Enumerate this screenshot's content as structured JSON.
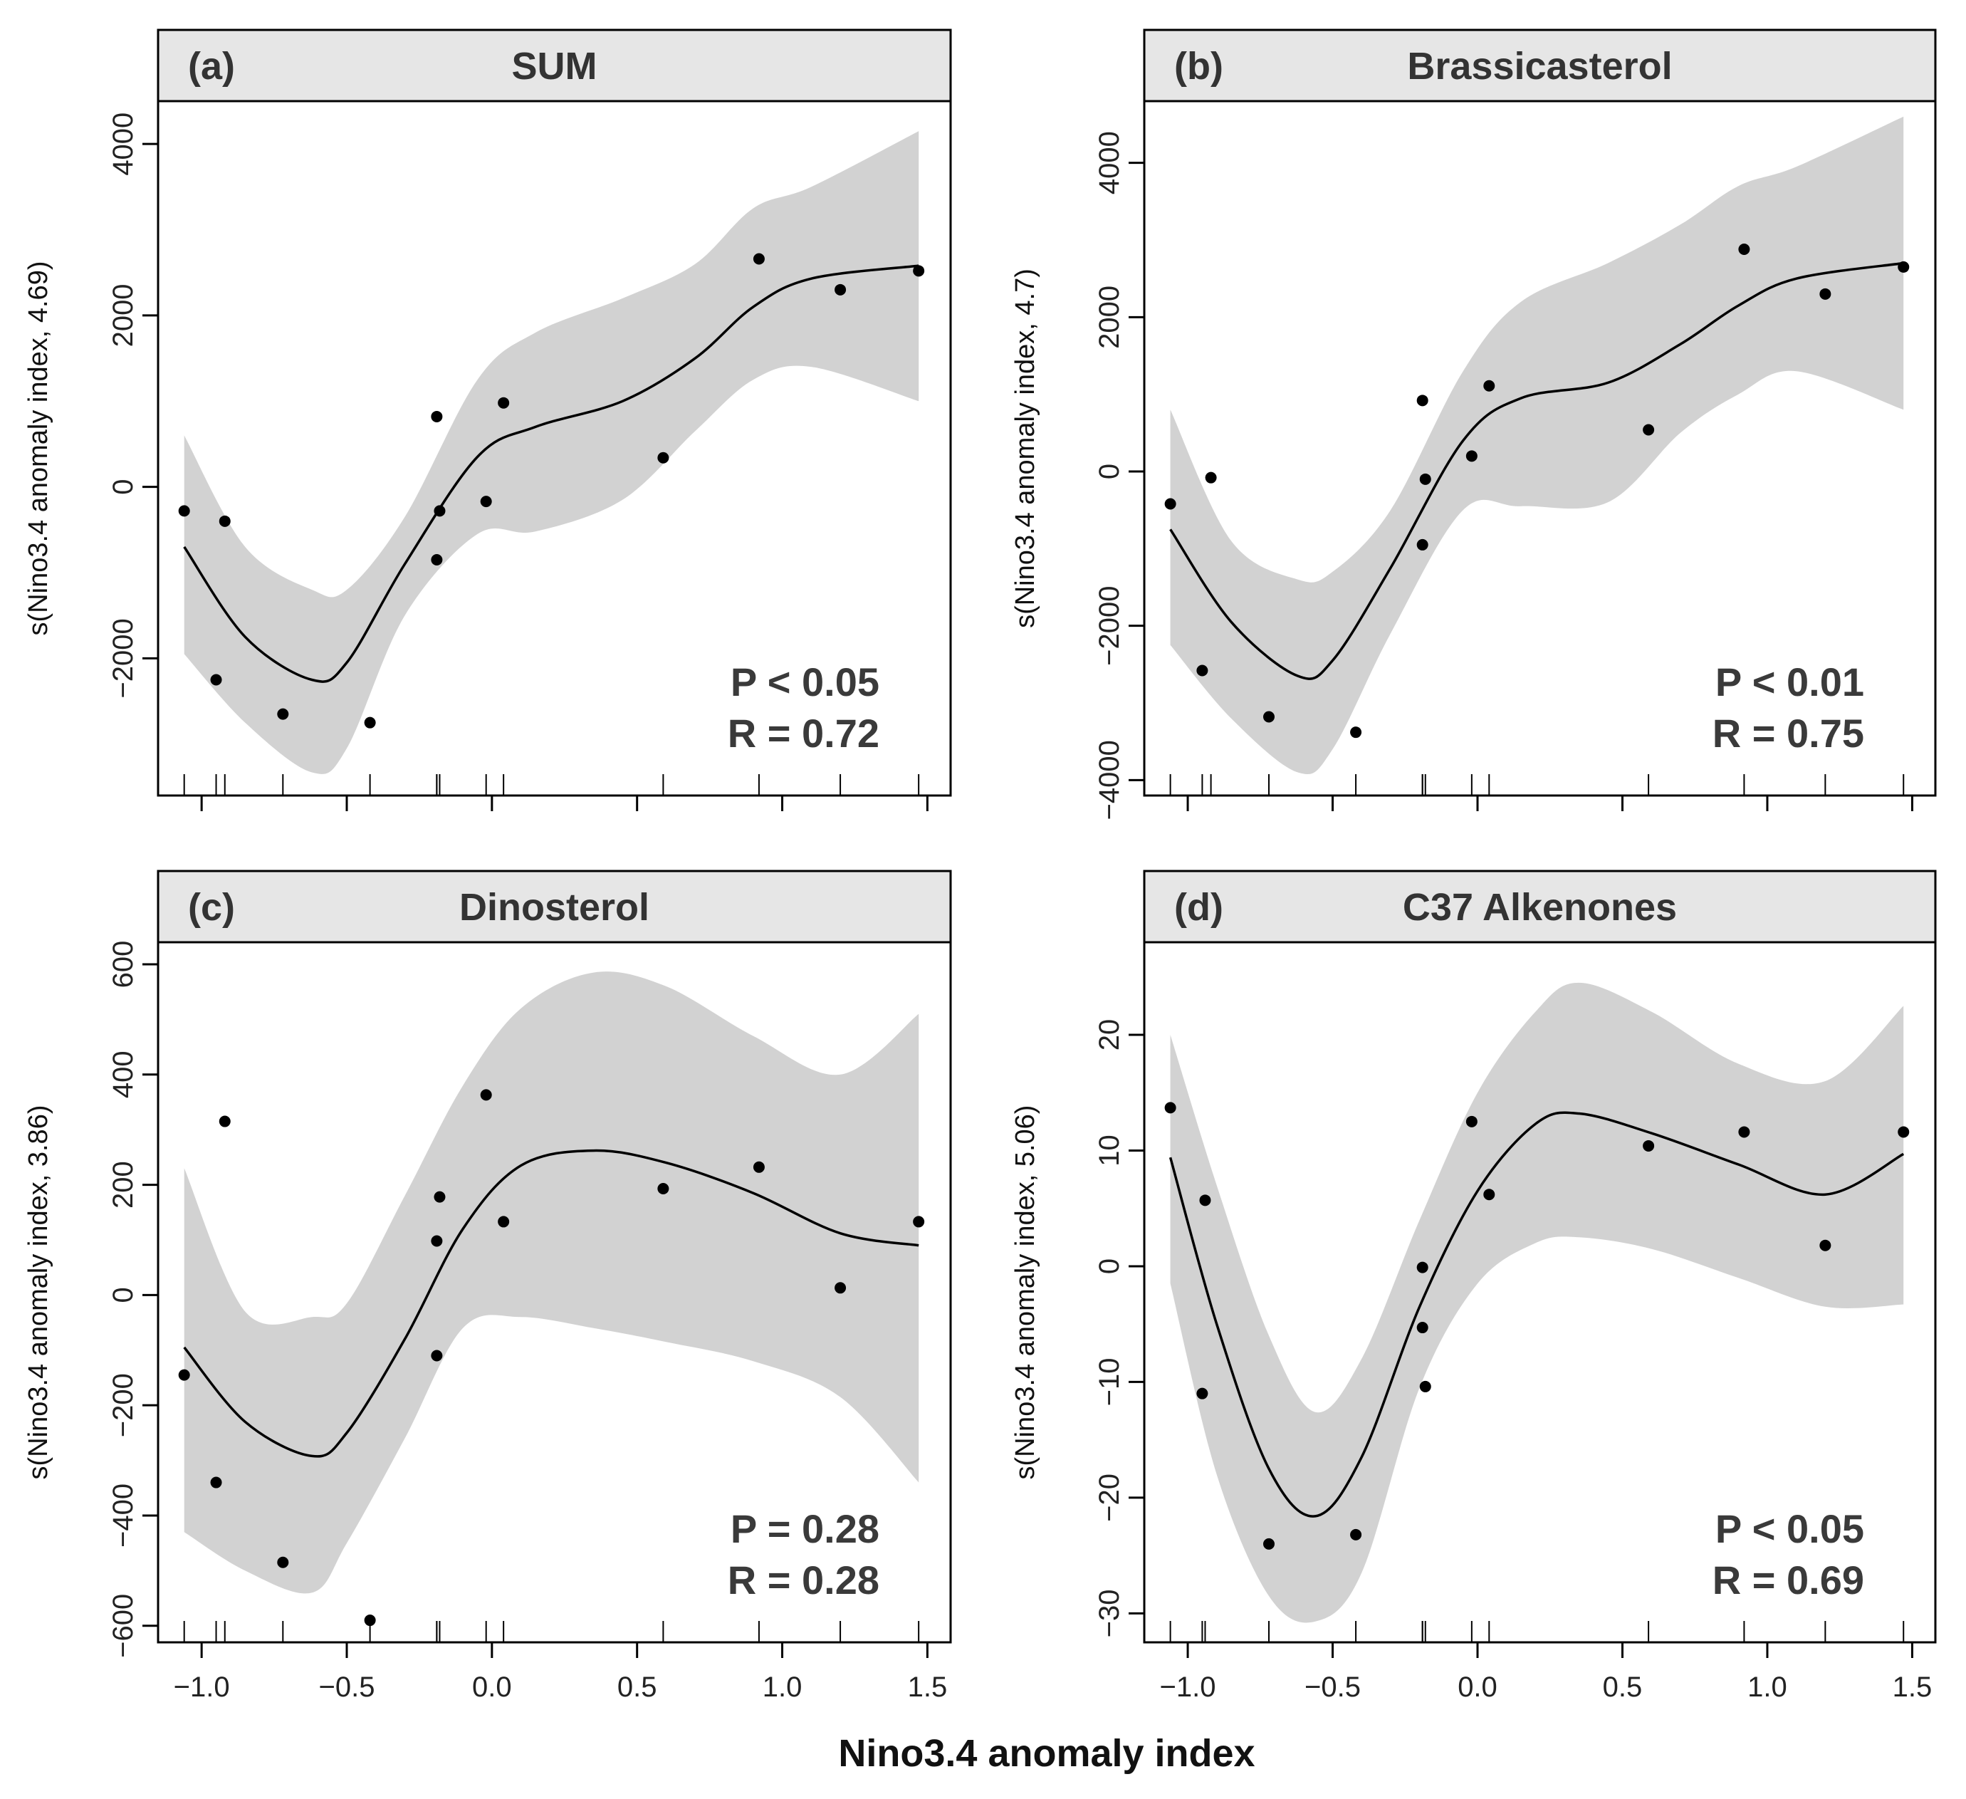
{
  "figure": {
    "xlabel": "Nino3.4 anomaly index",
    "colors": {
      "band": "#d2d2d2",
      "strip": "#e6e6e6",
      "line": "#000000",
      "point": "#000000"
    }
  },
  "chart_data": [
    {
      "type": "scatter",
      "panel_label": "(a)",
      "title": "SUM",
      "ylabel": "s(Nino3.4 anomaly index, 4.69)",
      "xlim": [
        -1.15,
        1.58
      ],
      "ylim": [
        -3600,
        4500
      ],
      "xticks": [
        -1.0,
        -0.5,
        0.0,
        0.5,
        1.0,
        1.5
      ],
      "xtick_labels": [
        "−1.0",
        "−0.5",
        "0.0",
        "0.5",
        "1.0",
        "1.5"
      ],
      "yticks": [
        -2000,
        0,
        2000,
        4000
      ],
      "ytick_labels": [
        "−2000",
        "0",
        "2000",
        "4000"
      ],
      "stats": {
        "p": "P < 0.05",
        "r": "R = 0.72"
      },
      "points": {
        "x": [
          -1.06,
          -0.95,
          -0.92,
          -0.72,
          -0.42,
          -0.19,
          -0.19,
          -0.18,
          -0.02,
          0.04,
          0.59,
          0.92,
          1.2,
          1.47
        ],
        "y": [
          -280,
          -2250,
          -400,
          -2650,
          -2750,
          820,
          -850,
          -280,
          -170,
          980,
          340,
          2660,
          2300,
          2520
        ]
      },
      "smooth": {
        "x": [
          -1.06,
          -0.85,
          -0.62,
          -0.5,
          -0.3,
          -0.05,
          0.15,
          0.45,
          0.7,
          0.9,
          1.1,
          1.47
        ],
        "y": [
          -700,
          -1750,
          -2250,
          -2050,
          -900,
          350,
          700,
          1000,
          1500,
          2100,
          2430,
          2580
        ],
        "lower": [
          -1950,
          -2750,
          -3330,
          -3050,
          -1500,
          -550,
          -520,
          -150,
          650,
          1250,
          1400,
          1000
        ],
        "upper": [
          600,
          -700,
          -1200,
          -1200,
          -350,
          1250,
          1800,
          2200,
          2600,
          3250,
          3500,
          4150
        ]
      }
    },
    {
      "type": "scatter",
      "panel_label": "(b)",
      "title": "Brassicasterol",
      "ylabel": "s(Nino3.4 anomaly index, 4.7)",
      "xlim": [
        -1.15,
        1.58
      ],
      "ylim": [
        -4200,
        4800
      ],
      "xticks": [
        -1.0,
        -0.5,
        0.0,
        0.5,
        1.0,
        1.5
      ],
      "xtick_labels": [
        "−1.0",
        "−0.5",
        "0.0",
        "0.5",
        "1.0",
        "1.5"
      ],
      "yticks": [
        -4000,
        -2000,
        0,
        2000,
        4000
      ],
      "ytick_labels": [
        "−4000",
        "−2000",
        "0",
        "2000",
        "4000"
      ],
      "stats": {
        "p": "P < 0.01",
        "r": "R = 0.75"
      },
      "points": {
        "x": [
          -1.06,
          -0.95,
          -0.92,
          -0.72,
          -0.42,
          -0.19,
          -0.19,
          -0.18,
          -0.02,
          0.04,
          0.59,
          0.92,
          1.2,
          1.47
        ],
        "y": [
          -420,
          -2580,
          -80,
          -3180,
          -3380,
          920,
          -950,
          -100,
          200,
          1110,
          540,
          2880,
          2300,
          2650
        ]
      },
      "smooth": {
        "x": [
          -1.06,
          -0.85,
          -0.62,
          -0.5,
          -0.3,
          -0.05,
          0.15,
          0.45,
          0.7,
          0.9,
          1.1,
          1.47
        ],
        "y": [
          -750,
          -1950,
          -2650,
          -2450,
          -1250,
          400,
          950,
          1150,
          1650,
          2150,
          2500,
          2700
        ],
        "lower": [
          -2250,
          -3200,
          -3900,
          -3600,
          -2100,
          -500,
          -450,
          -400,
          500,
          1000,
          1300,
          800
        ],
        "upper": [
          800,
          -900,
          -1400,
          -1300,
          -500,
          1300,
          2200,
          2700,
          3200,
          3700,
          3950,
          4600
        ]
      }
    },
    {
      "type": "scatter",
      "panel_label": "(c)",
      "title": "Dinosterol",
      "ylabel": "s(Nino3.4 anomaly index, 3.86)",
      "xlim": [
        -1.15,
        1.58
      ],
      "ylim": [
        -630,
        640
      ],
      "xticks": [
        -1.0,
        -0.5,
        0.0,
        0.5,
        1.0,
        1.5
      ],
      "xtick_labels": [
        "−1.0",
        "−0.5",
        "0.0",
        "0.5",
        "1.0",
        "1.5"
      ],
      "yticks": [
        -600,
        -400,
        -200,
        0,
        200,
        400,
        600
      ],
      "ytick_labels": [
        "−600",
        "−400",
        "−200",
        "0",
        "200",
        "400",
        "600"
      ],
      "stats": {
        "p": "P = 0.28",
        "r": "R = 0.28"
      },
      "points": {
        "x": [
          -1.06,
          -0.95,
          -0.92,
          -0.72,
          -0.42,
          -0.19,
          -0.19,
          -0.18,
          -0.02,
          0.04,
          0.59,
          0.92,
          1.2,
          1.47
        ],
        "y": [
          -145,
          -340,
          315,
          -485,
          -590,
          98,
          -110,
          178,
          363,
          133,
          193,
          232,
          13,
          133
        ]
      },
      "smooth": {
        "x": [
          -1.06,
          -0.85,
          -0.62,
          -0.5,
          -0.3,
          -0.1,
          0.1,
          0.35,
          0.6,
          0.9,
          1.2,
          1.47
        ],
        "y": [
          -95,
          -230,
          -292,
          -250,
          -80,
          120,
          235,
          262,
          240,
          185,
          112,
          90
        ],
        "lower": [
          -430,
          -500,
          -540,
          -450,
          -260,
          -60,
          -40,
          -60,
          -85,
          -120,
          -185,
          -340
        ],
        "upper": [
          230,
          -30,
          -40,
          -15,
          180,
          380,
          520,
          585,
          560,
          470,
          400,
          510
        ]
      }
    },
    {
      "type": "scatter",
      "panel_label": "(d)",
      "title": "C37 Alkenones",
      "ylabel": "s(Nino3.4 anomaly index, 5.06)",
      "xlim": [
        -1.15,
        1.58
      ],
      "ylim": [
        -32.5,
        28
      ],
      "xticks": [
        -1.0,
        -0.5,
        0.0,
        0.5,
        1.0,
        1.5
      ],
      "xtick_labels": [
        "−1.0",
        "−0.5",
        "0.0",
        "0.5",
        "1.0",
        "1.5"
      ],
      "yticks": [
        -30,
        -20,
        -10,
        0,
        10,
        20
      ],
      "ytick_labels": [
        "−30",
        "−20",
        "−10",
        "0",
        "10",
        "20"
      ],
      "stats": {
        "p": "P < 0.05",
        "r": "R = 0.69"
      },
      "points": {
        "x": [
          -1.06,
          -0.95,
          -0.94,
          -0.72,
          -0.42,
          -0.19,
          -0.19,
          -0.18,
          -0.02,
          0.04,
          0.59,
          0.92,
          1.2,
          1.47
        ],
        "y": [
          13.7,
          -11.0,
          5.7,
          -24.0,
          -23.2,
          -0.1,
          -5.3,
          -10.4,
          12.5,
          6.2,
          10.4,
          11.6,
          1.8,
          11.6
        ]
      },
      "smooth": {
        "x": [
          -1.06,
          -0.9,
          -0.72,
          -0.56,
          -0.4,
          -0.2,
          0.0,
          0.2,
          0.35,
          0.6,
          0.9,
          1.2,
          1.47
        ],
        "y": [
          9.4,
          -5.0,
          -17.5,
          -21.6,
          -16.5,
          -3.5,
          6.5,
          12.3,
          13.2,
          11.5,
          8.8,
          6.2,
          9.7
        ],
        "lower": [
          -1.5,
          -18.0,
          -28.5,
          -30.7,
          -26.5,
          -10.5,
          -1.5,
          2.0,
          2.5,
          1.5,
          -1.0,
          -3.5,
          -3.3
        ],
        "upper": [
          20.0,
          7.0,
          -6.0,
          -12.6,
          -8.0,
          4.0,
          15.0,
          22.0,
          24.5,
          22.0,
          17.5,
          16.0,
          22.5
        ]
      }
    }
  ]
}
